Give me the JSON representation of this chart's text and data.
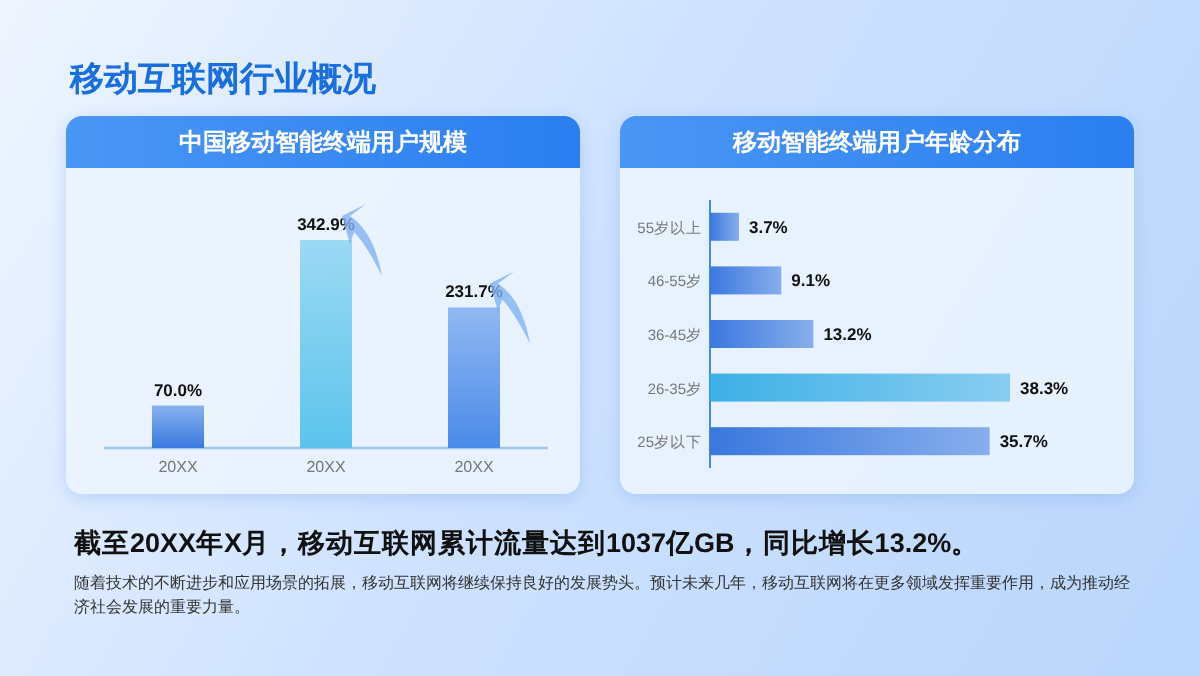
{
  "chart_data": [
    {
      "type": "other",
      "title": "移动互联网行业概况",
      "annotations": [
        "截至20XX年X月，移动互联网累计流量达到1037亿GB，同比增长13.2%。",
        "随着技术的不断进步和应用场景的拓展，移动互联网将继续保持良好的发展势头。预计未来几年，移动互联网将在更多领域发挥重要作用，成为推动经济社会发展的重要力量。"
      ]
    },
    {
      "type": "bar",
      "title": "中国移动智能终端用户规模",
      "categories": [
        "20XX",
        "20XX",
        "20XX"
      ],
      "values": [
        70.0,
        342.9,
        231.7
      ],
      "value_labels": [
        "70.0%",
        "342.9%",
        "231.7%"
      ],
      "colors": [
        "#3a7ae0",
        "#5cc4ec",
        "#4a8ae8"
      ]
    },
    {
      "type": "bar",
      "orientation": "horizontal",
      "title": "移动智能终端用户年龄分布",
      "categories": [
        "55岁以上",
        "46-55岁",
        "36-45岁",
        "26-35岁",
        "25岁以下"
      ],
      "values": [
        3.7,
        9.1,
        13.2,
        38.3,
        35.7
      ],
      "value_labels": [
        "3.7%",
        "9.1%",
        "13.2%",
        "38.3%",
        "35.7%"
      ],
      "colors": [
        "#3a78de",
        "#3a78de",
        "#3a78de",
        "#3cb0e6",
        "#3a78de"
      ]
    }
  ]
}
